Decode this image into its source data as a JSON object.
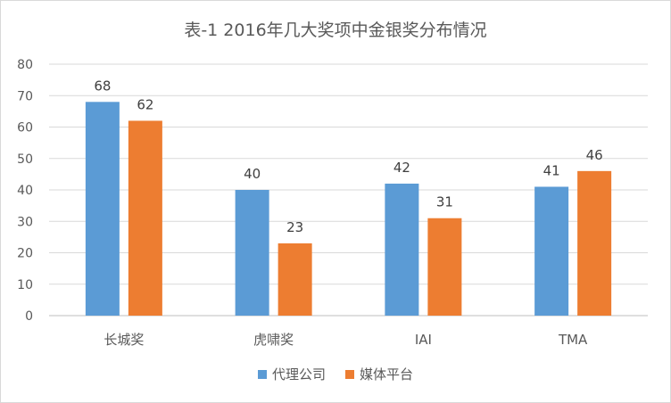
{
  "chart_data": {
    "type": "bar",
    "title": "表-1 2016年几大奖项中金银奖分布情况",
    "categories": [
      "长城奖",
      "虎啸奖",
      "IAI",
      "TMA"
    ],
    "series": [
      {
        "name": "代理公司",
        "values": [
          68,
          40,
          42,
          41
        ],
        "color": "#5b9bd5"
      },
      {
        "name": "媒体平台",
        "values": [
          62,
          23,
          31,
          46
        ],
        "color": "#ed7d31"
      }
    ],
    "ylim": [
      0,
      80
    ],
    "yticks": [
      0,
      10,
      20,
      30,
      40,
      50,
      60,
      70,
      80
    ],
    "grid": true,
    "legend": "bottom",
    "data_labels": true
  }
}
